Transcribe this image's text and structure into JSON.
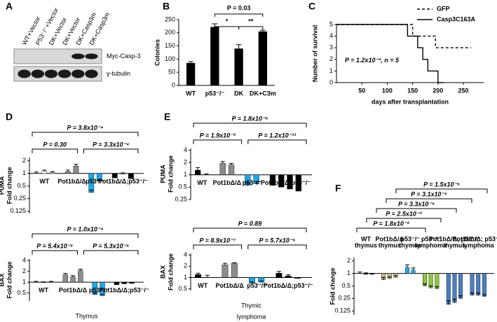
{
  "chart_data": [
    {
      "type": "blot",
      "panel": "A",
      "lanes": [
        "WT+Vector",
        "P53⁻/⁻+Vector",
        "DK+Vector",
        "DK+Vector",
        "DK+Casp3m",
        "DK+Casp3m"
      ],
      "bands": [
        "Myc-Casp-3",
        "γ-tubulin"
      ]
    },
    {
      "type": "bar",
      "panel": "B",
      "y_label": [
        "Colonies"
      ],
      "categories": [
        "WT",
        "p53⁻/⁻",
        "DK",
        "DK+C3m"
      ],
      "values": [
        85,
        222,
        140,
        205
      ],
      "errors": [
        5,
        12,
        15,
        5
      ],
      "color": "#000000",
      "ylim": [
        0,
        250
      ],
      "yticks": [
        0,
        50,
        100,
        150,
        200,
        250
      ],
      "annotations": [
        "P = 0.03",
        "*",
        "**"
      ]
    },
    {
      "type": "line",
      "panel": "C",
      "y_label": [
        "Number of survival"
      ],
      "x_label": "days after transplantation",
      "xlim": [
        0,
        290
      ],
      "xticks": [
        50,
        100,
        150,
        200,
        250
      ],
      "ylim": [
        0,
        5
      ],
      "yticks": [
        0,
        1,
        2,
        3,
        4,
        5
      ],
      "legend": "upper right",
      "series": [
        {
          "name": "GFP",
          "color": "#000000",
          "style": "dashed",
          "x": [
            0,
            150,
            150,
            195,
            195,
            265
          ],
          "values": [
            5,
            5,
            4,
            4,
            3,
            3
          ]
        },
        {
          "name": "Casp3C163A",
          "color": "#000000",
          "style": "solid",
          "x": [
            0,
            140,
            140,
            160,
            160,
            170,
            170,
            180,
            180,
            200,
            200,
            210
          ],
          "values": [
            5,
            5,
            4,
            4,
            3,
            3,
            2,
            2,
            1,
            1,
            0,
            0
          ]
        }
      ],
      "annotations": [
        "P = 1.2x10⁻³, n = 5"
      ]
    },
    {
      "type": "grouped-bar",
      "panel": "D",
      "log_scale": true,
      "y_label": [
        "PUMA",
        "Fold change"
      ],
      "ylim": [
        0.11,
        2.4
      ],
      "yticks": [
        0.125,
        0.25,
        0.5,
        1,
        2
      ],
      "annotations": [
        "P = 3.8x10⁻⁴",
        "P = 0.30",
        "P = 3.3x10⁻⁴"
      ],
      "groups": [
        {
          "label": "WT",
          "values": [
            1.0,
            1.12,
            1.05
          ],
          "errors": [
            0.08,
            0.08,
            0.06
          ],
          "colors": [
            "#000000",
            "#ffffff",
            "#ffffff"
          ]
        },
        {
          "label": "Pot1bΔ/Δ",
          "values": [
            1.1,
            1.5
          ],
          "errors": [
            0.1,
            0.15
          ],
          "colors": [
            "#8c8c8c",
            "#8c8c8c"
          ]
        },
        {
          "label": "p53⁻/⁻",
          "values": [
            0.35,
            0.65
          ],
          "errors": [
            0.05,
            0.06
          ],
          "colors": [
            "#1ea7e8",
            "#1ea7e8"
          ]
        },
        {
          "label": "Pot1bΔ/Δ;p53⁻/⁻",
          "values": [
            0.78,
            0.95,
            0.75
          ],
          "errors": [
            0.07,
            0.08,
            0.07
          ],
          "colors": [
            "#000000",
            "#ffffff",
            "#000000"
          ]
        }
      ]
    },
    {
      "type": "grouped-bar",
      "log_scale": true,
      "y_label": [
        "BAX",
        "Fold change"
      ],
      "caption": [
        "Thymus"
      ],
      "ylim": [
        0.3,
        4.4
      ],
      "yticks": [
        0.5,
        1,
        2,
        4
      ],
      "annotations": [
        "P = 1.0x10⁻⁴",
        "P = 5.4x10⁻⁶",
        "P = 5.3x10⁻⁶"
      ],
      "groups": [
        {
          "label": "WT",
          "values": [
            1.0,
            0.97,
            1.0
          ],
          "errors": [
            0.05,
            0.05,
            0.05
          ],
          "colors": [
            "#000000",
            "#ffffff",
            "#ffffff"
          ]
        },
        {
          "label": "Pot1bΔ/Δ",
          "values": [
            1.6,
            1.4,
            2.1
          ],
          "errors": [
            0.15,
            0.12,
            0.2
          ],
          "colors": [
            "#8c8c8c",
            "#8c8c8c",
            "#8c8c8c"
          ]
        },
        {
          "label": "p53⁻/⁻",
          "values": [
            0.45,
            0.42
          ],
          "errors": [
            0.05,
            0.04
          ],
          "colors": [
            "#1ea7e8",
            "#1ea7e8"
          ]
        },
        {
          "label": "Pot1bΔ/Δ;p53⁻/⁻",
          "values": [
            0.85,
            0.9,
            0.92
          ],
          "errors": [
            0.06,
            0.05,
            0.05
          ],
          "colors": [
            "#000000",
            "#000000",
            "#000000"
          ]
        }
      ]
    },
    {
      "type": "grouped-bar",
      "panel": "E",
      "log_scale": true,
      "y_label": [
        "PUMA",
        "Fold change"
      ],
      "ylim": [
        0.25,
        4.4
      ],
      "yticks": [
        0.25,
        0.5,
        1,
        2,
        4
      ],
      "annotations": [
        "P = 1.8x10⁻⁶",
        "P = 1.9x10⁻²",
        "P = 1.2x10⁻¹¹"
      ],
      "groups": [
        {
          "label": "WT",
          "values": [
            1.3,
            1.0
          ],
          "errors": [
            0.2,
            0.05
          ],
          "colors": [
            "#000000",
            "#ffffff"
          ]
        },
        {
          "label": "Pot1bΔ/Δ",
          "values": [
            1.9,
            1.75
          ],
          "errors": [
            0.2,
            0.15
          ],
          "colors": [
            "#8c8c8c",
            "#8c8c8c"
          ]
        },
        {
          "label": "p53⁻/⁻",
          "values": [
            0.55,
            0.6
          ],
          "errors": [
            0.1,
            0.08
          ],
          "colors": [
            "#1ea7e8",
            "#1ea7e8"
          ]
        },
        {
          "label": "Pot1bΔ/Δ;p53⁻/⁻",
          "values": [
            0.55,
            0.5,
            0.45,
            0.4
          ],
          "errors": [
            0.1,
            0.1,
            0.08,
            0.08
          ],
          "colors": [
            "#000000",
            "#000000",
            "#000000",
            "#000000"
          ]
        }
      ]
    },
    {
      "type": "grouped-bar",
      "log_scale": true,
      "y_label": [
        "BAX",
        "Fold change"
      ],
      "caption": [
        "Thymic",
        "lymphoma"
      ],
      "ylim": [
        0.45,
        4.4
      ],
      "yticks": [
        0.5,
        1,
        2,
        4
      ],
      "annotations": [
        "P = 0.89",
        "P = 8.9x10⁻⁷",
        "P = 5.7x10⁻⁶"
      ],
      "groups": [
        {
          "label": "WT",
          "values": [
            1.2,
            1.0
          ],
          "errors": [
            0.1,
            0.15
          ],
          "colors": [
            "#000000",
            "#ffffff"
          ]
        },
        {
          "label": "Pot1bΔ/Δ",
          "values": [
            2.2,
            2.4
          ],
          "errors": [
            0.2,
            0.1
          ],
          "colors": [
            "#8c8c8c",
            "#8c8c8c"
          ]
        },
        {
          "label": "p53⁻/⁻",
          "values": [
            0.7,
            0.75
          ],
          "errors": [
            0.06,
            0.06
          ],
          "colors": [
            "#1ea7e8",
            "#1ea7e8"
          ]
        },
        {
          "label": "Pot1bΔ/Δ;p53⁻/⁻",
          "values": [
            1.3,
            1.1,
            0.95
          ],
          "errors": [
            0.15,
            0.08,
            0.05
          ],
          "colors": [
            "#000000",
            "#000000",
            "#000000"
          ]
        }
      ]
    },
    {
      "type": "grouped-bar",
      "panel": "F",
      "log_scale": true,
      "y_label": [
        "Fold change"
      ],
      "ylim": [
        0.1,
        2.4
      ],
      "yticks": [
        0.125,
        0.25,
        0.5,
        1,
        2
      ],
      "annotations": [
        "P = 1.5x10⁻⁶",
        "P = 3.1x10⁻⁵",
        "P = 3.3x10⁻⁴",
        "P = 2.5x10⁻²",
        "P = 1.8x10⁻²"
      ],
      "groups": [
        {
          "label": [
            "WT",
            "thymus"
          ],
          "values": [
            1.0,
            0.95,
            0.95
          ],
          "errors": [
            0.08,
            0.08,
            0.05
          ],
          "colors": [
            "#000000",
            "#000000",
            "#000000"
          ]
        },
        {
          "label": [
            "Pot1bΔ/Δ",
            "thymus"
          ],
          "values": [
            0.7,
            0.75,
            0.8
          ],
          "errors": [
            0.1,
            0.08,
            0.08
          ],
          "colors": [
            "#c8b98a",
            "#c8b98a",
            "#c8b98a"
          ]
        },
        {
          "label": [
            "p53⁻/⁻",
            "thymus"
          ],
          "values": [
            1.4,
            1.2
          ],
          "errors": [
            0.2,
            0.15
          ],
          "colors": [
            "#2aa6e0",
            "#2aa6e0"
          ]
        },
        {
          "label": [
            "p53⁻/⁻",
            "lymphoma"
          ],
          "values": [
            0.5,
            0.45,
            0.43
          ],
          "errors": [
            0.06,
            0.05,
            0.05
          ],
          "colors": [
            "#8cc63f",
            "#8cc63f",
            "#8cc63f"
          ]
        },
        {
          "label": [
            "Pot1bΔ/Δ; p53⁻/⁻",
            "thymus"
          ],
          "values": [
            0.18,
            0.2,
            0.25
          ],
          "errors": [
            0.04,
            0.04,
            0.04
          ],
          "colors": [
            "#4a7fc1",
            "#4a7fc1",
            "#4a7fc1"
          ]
        },
        {
          "label": [
            "Pot1bΔ/Δ; p53⁻/⁻",
            "lymphoma"
          ],
          "values": [
            0.3,
            0.3,
            0.28
          ],
          "errors": [
            0.04,
            0.04,
            0.03
          ],
          "colors": [
            "#4a7fc1",
            "#4a7fc1",
            "#4a7fc1"
          ]
        }
      ]
    }
  ]
}
